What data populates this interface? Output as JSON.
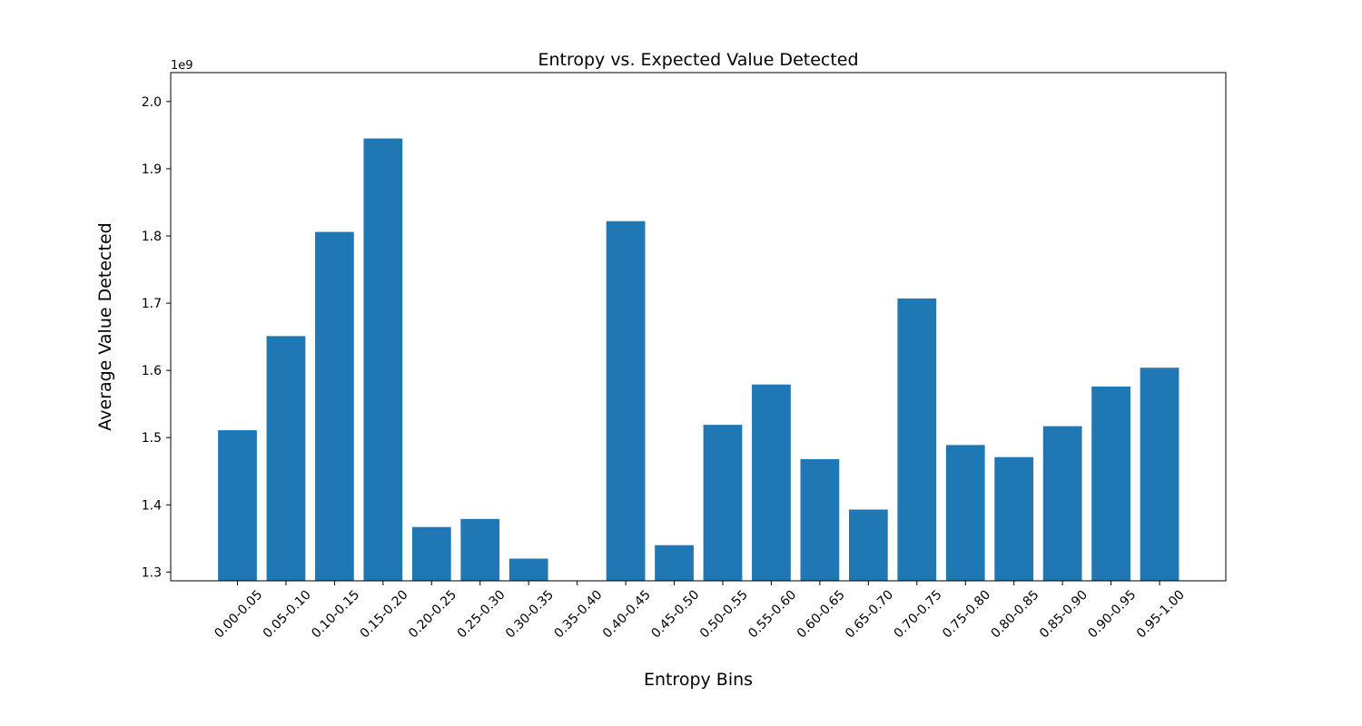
{
  "chart_data": {
    "type": "bar",
    "title": "Entropy vs. Expected Value Detected",
    "xlabel": "Entropy Bins",
    "ylabel": "Average Value Detected",
    "y_offset_label": "1e9",
    "bar_color": "#1f77b4",
    "categories": [
      "0.00-0.05",
      "0.05-0.10",
      "0.10-0.15",
      "0.15-0.20",
      "0.20-0.25",
      "0.25-0.30",
      "0.30-0.35",
      "0.35-0.40",
      "0.40-0.45",
      "0.45-0.50",
      "0.50-0.55",
      "0.55-0.60",
      "0.60-0.65",
      "0.65-0.70",
      "0.70-0.75",
      "0.75-0.80",
      "0.80-0.85",
      "0.85-0.90",
      "0.90-0.95",
      "0.95-1.00"
    ],
    "values": [
      1.511,
      1.651,
      1.806,
      1.945,
      1.367,
      1.379,
      1.32,
      null,
      1.822,
      1.34,
      1.519,
      1.579,
      1.468,
      1.393,
      1.707,
      1.489,
      1.471,
      1.517,
      1.576,
      1.604
    ],
    "value_unit_multiplier": 1000000000,
    "ylim": [
      1.287,
      2.043
    ],
    "yticks": [
      1.3,
      1.4,
      1.5,
      1.6,
      1.7,
      1.8,
      1.9,
      2.0
    ],
    "ytick_labels": [
      "1.3",
      "1.4",
      "1.5",
      "1.6",
      "1.7",
      "1.8",
      "1.9",
      "2.0"
    ],
    "grid": false,
    "legend": "none"
  }
}
